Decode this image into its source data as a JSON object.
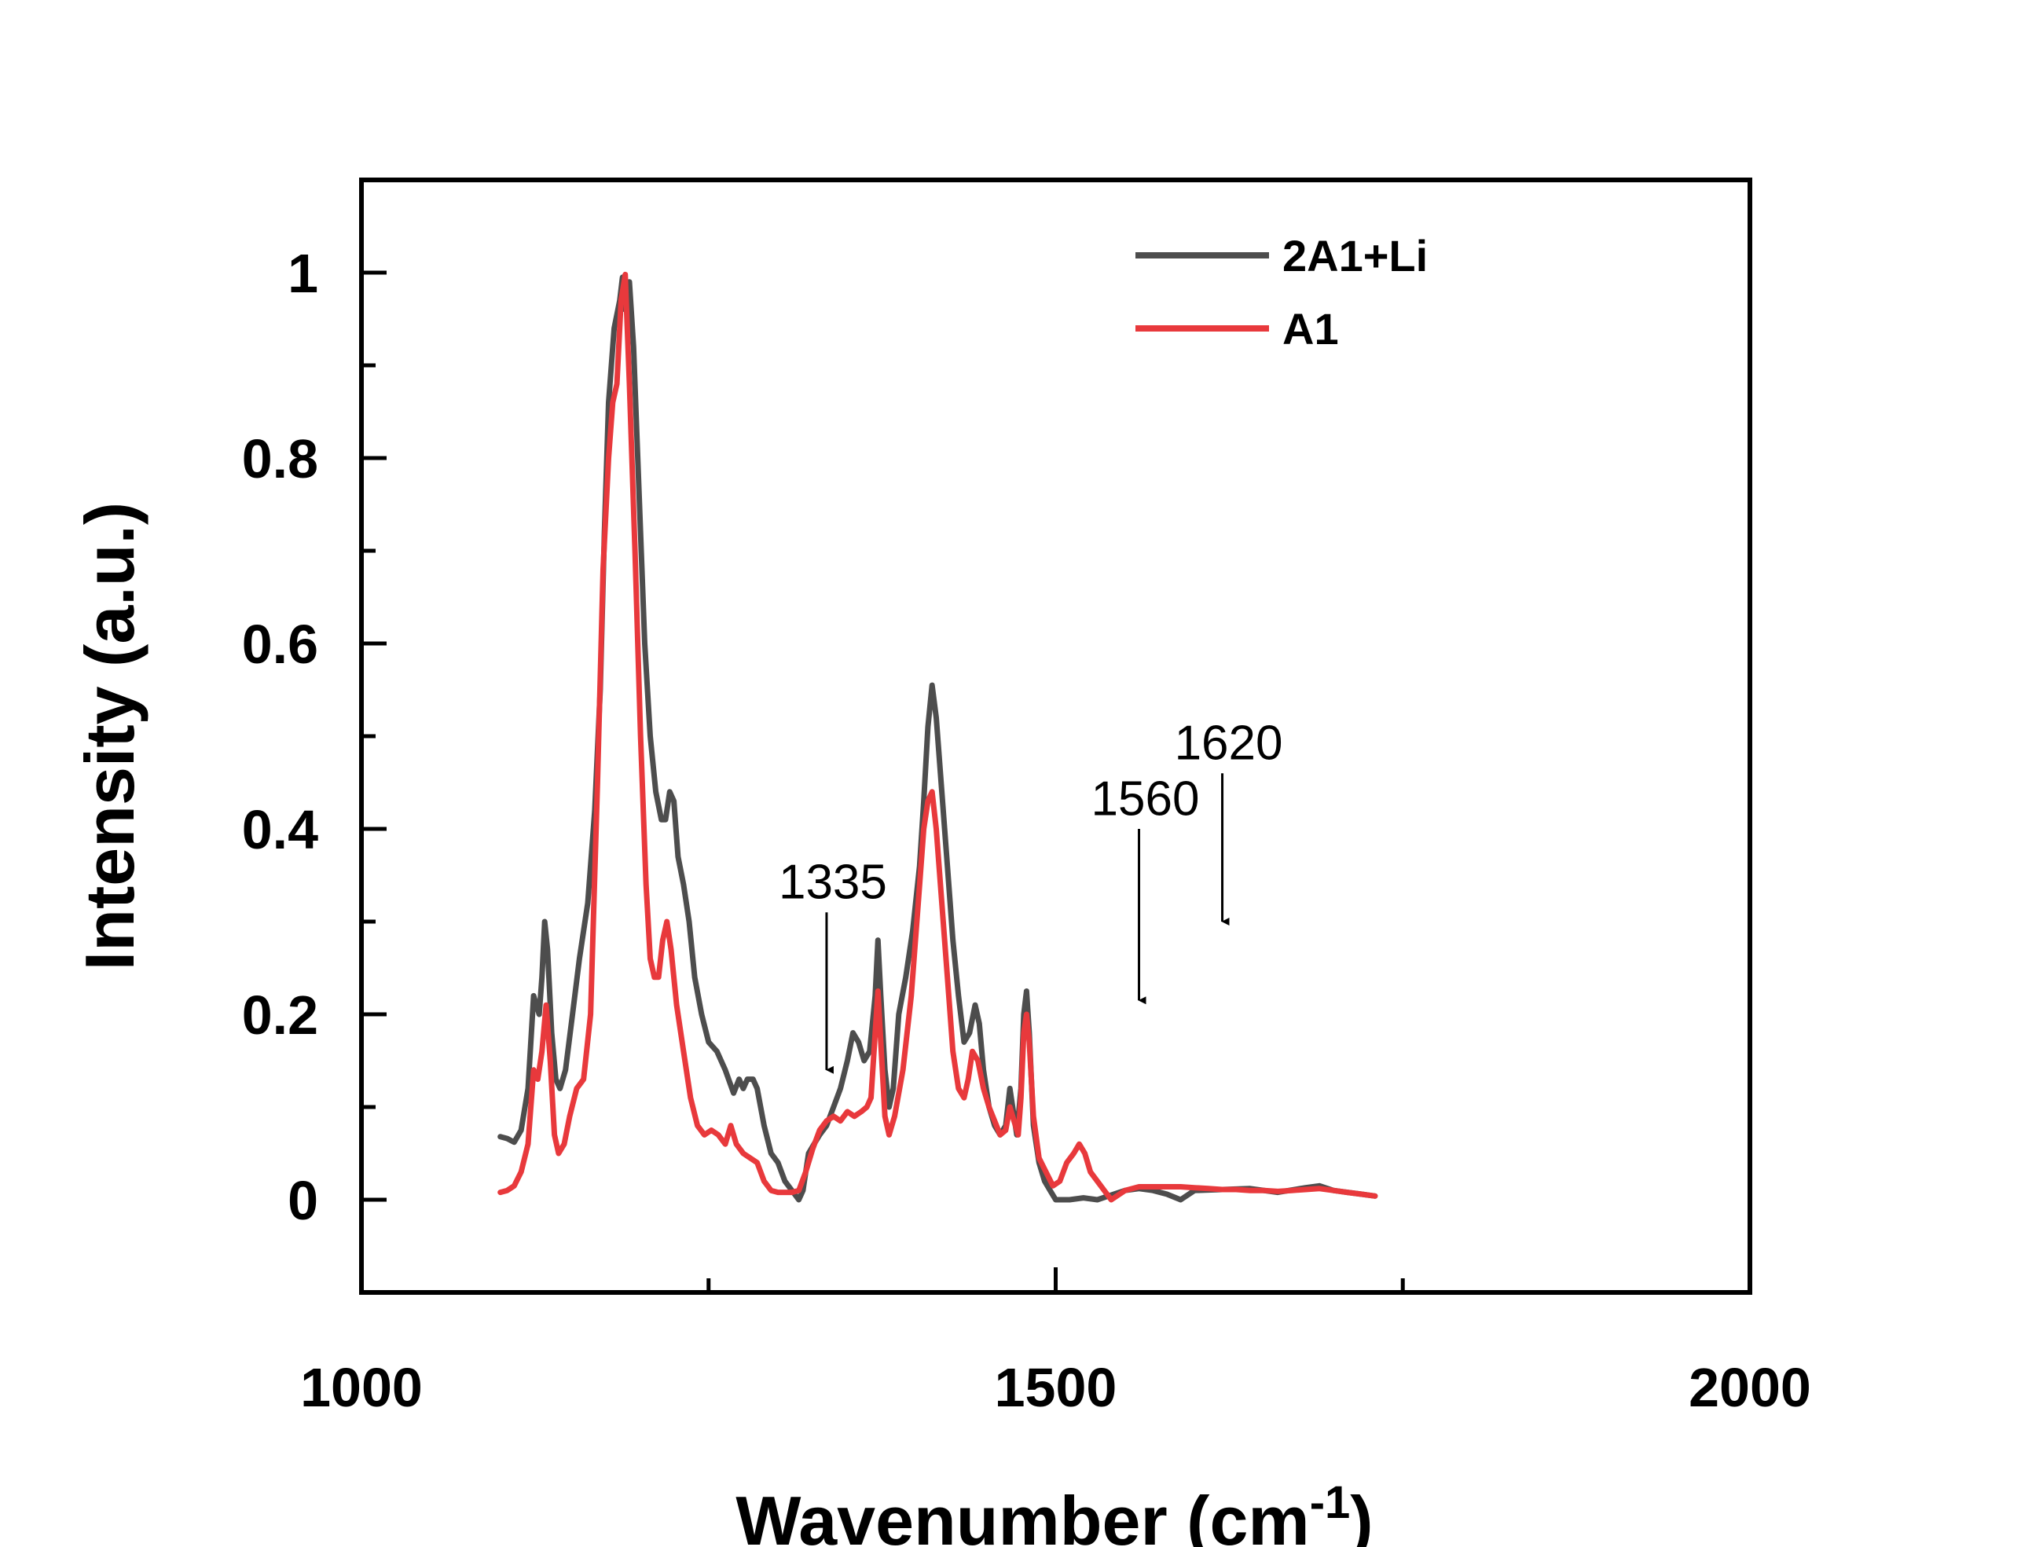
{
  "chart_data": {
    "type": "line",
    "xlabel": "Wavenumber (cm",
    "xlabel_sup": "-1",
    "xlabel_close": ")",
    "ylabel": "Intensity (a.u.)",
    "xlim": [
      1000,
      2000
    ],
    "ylim": [
      -0.1,
      1.1
    ],
    "x_ticks": [
      1000,
      1500,
      2000
    ],
    "x_tick_labels": [
      "1000",
      "1500",
      "2000"
    ],
    "x_minor_ticks": [
      1250,
      1750
    ],
    "y_ticks": [
      0,
      0.2,
      0.4,
      0.6,
      0.8,
      1.0
    ],
    "y_tick_labels": [
      "0",
      "0.2",
      "0.4",
      "0.6",
      "0.8",
      "1"
    ],
    "y_minor_ticks": [
      0.1,
      0.3,
      0.5,
      0.7,
      0.9
    ],
    "legend_position": "top-right",
    "series": [
      {
        "name": "2A1+Li",
        "color": "#4d4d4d",
        "points": [
          [
            1100,
            0.068
          ],
          [
            1105,
            0.066
          ],
          [
            1110,
            0.062
          ],
          [
            1115,
            0.075
          ],
          [
            1120,
            0.12
          ],
          [
            1124,
            0.22
          ],
          [
            1128,
            0.2
          ],
          [
            1130,
            0.24
          ],
          [
            1132,
            0.3
          ],
          [
            1134,
            0.27
          ],
          [
            1137,
            0.18
          ],
          [
            1140,
            0.13
          ],
          [
            1143,
            0.12
          ],
          [
            1147,
            0.14
          ],
          [
            1152,
            0.2
          ],
          [
            1157,
            0.26
          ],
          [
            1163,
            0.32
          ],
          [
            1168,
            0.42
          ],
          [
            1172,
            0.55
          ],
          [
            1175,
            0.72
          ],
          [
            1178,
            0.86
          ],
          [
            1182,
            0.94
          ],
          [
            1186,
            0.97
          ],
          [
            1188,
            0.995
          ],
          [
            1190,
            0.96
          ],
          [
            1193,
            0.99
          ],
          [
            1196,
            0.92
          ],
          [
            1200,
            0.76
          ],
          [
            1204,
            0.6
          ],
          [
            1208,
            0.5
          ],
          [
            1212,
            0.44
          ],
          [
            1216,
            0.41
          ],
          [
            1219,
            0.41
          ],
          [
            1222,
            0.44
          ],
          [
            1225,
            0.43
          ],
          [
            1228,
            0.37
          ],
          [
            1232,
            0.34
          ],
          [
            1236,
            0.3
          ],
          [
            1240,
            0.24
          ],
          [
            1245,
            0.2
          ],
          [
            1250,
            0.17
          ],
          [
            1256,
            0.16
          ],
          [
            1262,
            0.14
          ],
          [
            1268,
            0.115
          ],
          [
            1272,
            0.13
          ],
          [
            1275,
            0.12
          ],
          [
            1278,
            0.13
          ],
          [
            1282,
            0.13
          ],
          [
            1285,
            0.12
          ],
          [
            1290,
            0.08
          ],
          [
            1295,
            0.05
          ],
          [
            1300,
            0.04
          ],
          [
            1305,
            0.02
          ],
          [
            1310,
            0.01
          ],
          [
            1315,
            0.0
          ],
          [
            1318,
            0.01
          ],
          [
            1322,
            0.05
          ],
          [
            1326,
            0.06
          ],
          [
            1330,
            0.07
          ],
          [
            1335,
            0.08
          ],
          [
            1340,
            0.1
          ],
          [
            1345,
            0.12
          ],
          [
            1350,
            0.15
          ],
          [
            1354,
            0.18
          ],
          [
            1358,
            0.17
          ],
          [
            1362,
            0.15
          ],
          [
            1366,
            0.16
          ],
          [
            1370,
            0.22
          ],
          [
            1372,
            0.28
          ],
          [
            1374,
            0.22
          ],
          [
            1377,
            0.14
          ],
          [
            1380,
            0.1
          ],
          [
            1383,
            0.12
          ],
          [
            1387,
            0.2
          ],
          [
            1392,
            0.24
          ],
          [
            1397,
            0.29
          ],
          [
            1402,
            0.36
          ],
          [
            1405,
            0.43
          ],
          [
            1408,
            0.51
          ],
          [
            1411,
            0.555
          ],
          [
            1414,
            0.52
          ],
          [
            1418,
            0.44
          ],
          [
            1422,
            0.36
          ],
          [
            1426,
            0.28
          ],
          [
            1430,
            0.22
          ],
          [
            1434,
            0.17
          ],
          [
            1438,
            0.18
          ],
          [
            1442,
            0.21
          ],
          [
            1445,
            0.19
          ],
          [
            1448,
            0.14
          ],
          [
            1452,
            0.1
          ],
          [
            1456,
            0.08
          ],
          [
            1460,
            0.07
          ],
          [
            1464,
            0.08
          ],
          [
            1467,
            0.12
          ],
          [
            1470,
            0.09
          ],
          [
            1472,
            0.07
          ],
          [
            1475,
            0.12
          ],
          [
            1477,
            0.2
          ],
          [
            1479,
            0.225
          ],
          [
            1481,
            0.18
          ],
          [
            1484,
            0.08
          ],
          [
            1488,
            0.04
          ],
          [
            1492,
            0.02
          ],
          [
            1496,
            0.01
          ],
          [
            1500,
            0.0
          ],
          [
            1510,
            0.0
          ],
          [
            1520,
            0.002
          ],
          [
            1530,
            0.0
          ],
          [
            1540,
            0.005
          ],
          [
            1550,
            0.01
          ],
          [
            1560,
            0.012
          ],
          [
            1570,
            0.01
          ],
          [
            1580,
            0.006
          ],
          [
            1590,
            0.0
          ],
          [
            1600,
            0.01
          ],
          [
            1620,
            0.011
          ],
          [
            1640,
            0.012
          ],
          [
            1660,
            0.008
          ],
          [
            1680,
            0.013
          ],
          [
            1690,
            0.015
          ],
          [
            1700,
            0.01
          ],
          [
            1710,
            0.008
          ],
          [
            1720,
            0.006
          ],
          [
            1730,
            0.004
          ]
        ]
      },
      {
        "name": "A1",
        "color": "#e8393c",
        "points": [
          [
            1100,
            0.008
          ],
          [
            1105,
            0.01
          ],
          [
            1110,
            0.015
          ],
          [
            1115,
            0.03
          ],
          [
            1120,
            0.06
          ],
          [
            1124,
            0.14
          ],
          [
            1127,
            0.13
          ],
          [
            1130,
            0.16
          ],
          [
            1133,
            0.21
          ],
          [
            1136,
            0.15
          ],
          [
            1139,
            0.07
          ],
          [
            1142,
            0.05
          ],
          [
            1146,
            0.06
          ],
          [
            1150,
            0.09
          ],
          [
            1155,
            0.12
          ],
          [
            1160,
            0.13
          ],
          [
            1165,
            0.2
          ],
          [
            1170,
            0.45
          ],
          [
            1174,
            0.68
          ],
          [
            1178,
            0.8
          ],
          [
            1181,
            0.86
          ],
          [
            1184,
            0.88
          ],
          [
            1187,
            0.97
          ],
          [
            1190,
            0.998
          ],
          [
            1193,
            0.88
          ],
          [
            1197,
            0.7
          ],
          [
            1201,
            0.5
          ],
          [
            1205,
            0.34
          ],
          [
            1208,
            0.26
          ],
          [
            1211,
            0.24
          ],
          [
            1214,
            0.24
          ],
          [
            1217,
            0.28
          ],
          [
            1220,
            0.3
          ],
          [
            1223,
            0.27
          ],
          [
            1227,
            0.21
          ],
          [
            1232,
            0.16
          ],
          [
            1237,
            0.11
          ],
          [
            1242,
            0.08
          ],
          [
            1247,
            0.07
          ],
          [
            1252,
            0.075
          ],
          [
            1257,
            0.07
          ],
          [
            1262,
            0.06
          ],
          [
            1266,
            0.08
          ],
          [
            1270,
            0.06
          ],
          [
            1275,
            0.05
          ],
          [
            1280,
            0.045
          ],
          [
            1285,
            0.04
          ],
          [
            1290,
            0.02
          ],
          [
            1295,
            0.01
          ],
          [
            1300,
            0.008
          ],
          [
            1305,
            0.008
          ],
          [
            1310,
            0.008
          ],
          [
            1315,
            0.01
          ],
          [
            1320,
            0.03
          ],
          [
            1325,
            0.055
          ],
          [
            1330,
            0.075
          ],
          [
            1335,
            0.085
          ],
          [
            1340,
            0.09
          ],
          [
            1345,
            0.085
          ],
          [
            1350,
            0.095
          ],
          [
            1355,
            0.09
          ],
          [
            1360,
            0.095
          ],
          [
            1364,
            0.1
          ],
          [
            1367,
            0.11
          ],
          [
            1370,
            0.18
          ],
          [
            1372,
            0.225
          ],
          [
            1374,
            0.17
          ],
          [
            1377,
            0.09
          ],
          [
            1380,
            0.07
          ],
          [
            1384,
            0.09
          ],
          [
            1390,
            0.14
          ],
          [
            1396,
            0.22
          ],
          [
            1401,
            0.32
          ],
          [
            1405,
            0.4
          ],
          [
            1408,
            0.43
          ],
          [
            1411,
            0.44
          ],
          [
            1414,
            0.4
          ],
          [
            1418,
            0.32
          ],
          [
            1422,
            0.24
          ],
          [
            1426,
            0.16
          ],
          [
            1430,
            0.12
          ],
          [
            1434,
            0.11
          ],
          [
            1437,
            0.13
          ],
          [
            1440,
            0.16
          ],
          [
            1444,
            0.15
          ],
          [
            1448,
            0.12
          ],
          [
            1452,
            0.1
          ],
          [
            1456,
            0.085
          ],
          [
            1460,
            0.07
          ],
          [
            1464,
            0.075
          ],
          [
            1467,
            0.1
          ],
          [
            1470,
            0.085
          ],
          [
            1473,
            0.07
          ],
          [
            1475,
            0.11
          ],
          [
            1477,
            0.18
          ],
          [
            1479,
            0.2
          ],
          [
            1481,
            0.17
          ],
          [
            1484,
            0.09
          ],
          [
            1488,
            0.045
          ],
          [
            1493,
            0.03
          ],
          [
            1498,
            0.015
          ],
          [
            1503,
            0.02
          ],
          [
            1508,
            0.04
          ],
          [
            1513,
            0.05
          ],
          [
            1517,
            0.06
          ],
          [
            1521,
            0.05
          ],
          [
            1525,
            0.03
          ],
          [
            1530,
            0.02
          ],
          [
            1535,
            0.01
          ],
          [
            1540,
            0.0
          ],
          [
            1545,
            0.005
          ],
          [
            1550,
            0.01
          ],
          [
            1560,
            0.014
          ],
          [
            1570,
            0.014
          ],
          [
            1580,
            0.014
          ],
          [
            1590,
            0.014
          ],
          [
            1600,
            0.013
          ],
          [
            1610,
            0.012
          ],
          [
            1620,
            0.011
          ],
          [
            1630,
            0.011
          ],
          [
            1640,
            0.01
          ],
          [
            1650,
            0.01
          ],
          [
            1660,
            0.009
          ],
          [
            1670,
            0.01
          ],
          [
            1680,
            0.011
          ],
          [
            1690,
            0.012
          ],
          [
            1700,
            0.01
          ],
          [
            1710,
            0.008
          ],
          [
            1720,
            0.006
          ],
          [
            1730,
            0.004
          ]
        ]
      }
    ],
    "annotations": [
      {
        "label": "1335",
        "x": 1335,
        "y_tip": 0.14,
        "y_tail": 0.31,
        "y_text": 0.325
      },
      {
        "label": "1560",
        "x": 1560,
        "y_tip": 0.215,
        "y_tail": 0.4,
        "y_text": 0.415
      },
      {
        "label": "1620",
        "x": 1620,
        "y_tip": 0.3,
        "y_tail": 0.46,
        "y_text": 0.475
      }
    ]
  }
}
